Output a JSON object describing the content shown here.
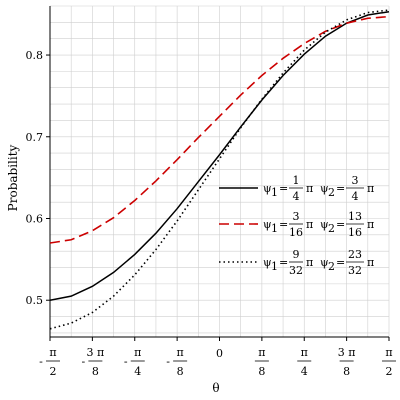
{
  "chart_data": {
    "type": "line",
    "xlabel": "θ",
    "ylabel": "Probability",
    "xlim": [
      -1.5708,
      1.5708
    ],
    "ylim": [
      0.455,
      0.86
    ],
    "grid": true,
    "legend_position": "center-right",
    "x_ticks": [
      {
        "value": -1.5708,
        "sign": "-",
        "num": "π",
        "den": "2"
      },
      {
        "value": -1.1781,
        "sign": "-",
        "num": "3 π",
        "den": "8"
      },
      {
        "value": -0.7854,
        "sign": "-",
        "num": "π",
        "den": "4"
      },
      {
        "value": -0.3927,
        "sign": "-",
        "num": "π",
        "den": "8"
      },
      {
        "value": 0,
        "sign": "",
        "num": "",
        "den": "",
        "plain": "0"
      },
      {
        "value": 0.3927,
        "sign": "",
        "num": "π",
        "den": "8"
      },
      {
        "value": 0.7854,
        "sign": "",
        "num": "π",
        "den": "4"
      },
      {
        "value": 1.1781,
        "sign": "",
        "num": "3 π",
        "den": "8"
      },
      {
        "value": 1.5708,
        "sign": "",
        "num": "π",
        "den": "2"
      }
    ],
    "y_ticks": [
      {
        "value": 0.5,
        "label": "0.5"
      },
      {
        "value": 0.6,
        "label": "0.6"
      },
      {
        "value": 0.7,
        "label": "0.7"
      },
      {
        "value": 0.8,
        "label": "0.8"
      }
    ],
    "x": [
      -1.5708,
      -1.3744,
      -1.1781,
      -0.9817,
      -0.7854,
      -0.589,
      -0.3927,
      -0.1963,
      0,
      0.1963,
      0.3927,
      0.589,
      0.7854,
      0.9817,
      1.1781,
      1.3744,
      1.5708
    ],
    "series": [
      {
        "style": "solid",
        "color": "#000000",
        "legend": {
          "psi1_num": "1",
          "psi1_den": "4",
          "psi2_num": "3",
          "psi2_den": "4"
        },
        "values": [
          0.5,
          0.505,
          0.517,
          0.534,
          0.556,
          0.582,
          0.612,
          0.645,
          0.678,
          0.712,
          0.745,
          0.775,
          0.801,
          0.823,
          0.839,
          0.849,
          0.853
        ]
      },
      {
        "style": "dashed",
        "color": "#cc0000",
        "legend": {
          "psi1_num": "3",
          "psi1_den": "16",
          "psi2_num": "13",
          "psi2_den": "16"
        },
        "values": [
          0.57,
          0.574,
          0.585,
          0.601,
          0.622,
          0.646,
          0.672,
          0.699,
          0.725,
          0.751,
          0.775,
          0.796,
          0.814,
          0.829,
          0.839,
          0.845,
          0.847
        ]
      },
      {
        "style": "dotted",
        "color": "#000000",
        "legend": {
          "psi1_num": "9",
          "psi1_den": "32",
          "psi2_num": "23",
          "psi2_den": "32"
        },
        "values": [
          0.465,
          0.472,
          0.485,
          0.505,
          0.531,
          0.562,
          0.597,
          0.635,
          0.673,
          0.711,
          0.746,
          0.778,
          0.806,
          0.828,
          0.843,
          0.852,
          0.855
        ]
      }
    ],
    "legend_symbols": {
      "psi1": "ψ",
      "psi1_sub": "1",
      "psi2": "ψ",
      "psi2_sub": "2",
      "eq": "=",
      "pi": "π"
    }
  }
}
